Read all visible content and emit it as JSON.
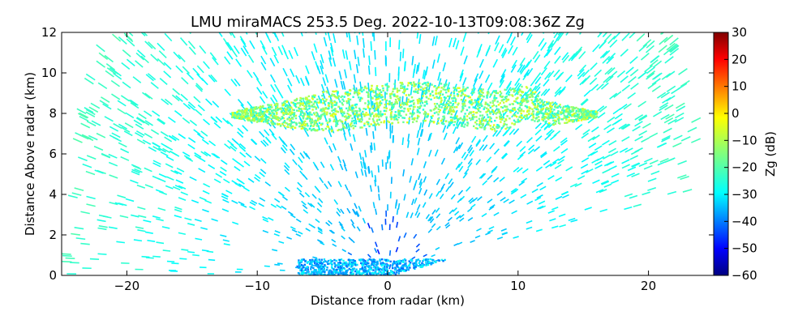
{
  "chart_data": {
    "type": "heatmap",
    "title": "LMU miraMACS 253.5 Deg. 2022-10-13T09:08:36Z  Zg",
    "xlabel": "Distance from radar (km)",
    "ylabel": "Distance Above radar  (km)",
    "xlim": [
      -25,
      25
    ],
    "ylim": [
      0,
      12
    ],
    "x_ticks": [
      -20,
      -10,
      0,
      10,
      20
    ],
    "y_ticks": [
      0,
      2,
      4,
      6,
      8,
      10,
      12
    ],
    "grid": false,
    "colorbar": {
      "label": "Zg (dB)",
      "range": [
        -60,
        30
      ],
      "ticks": [
        30,
        20,
        10,
        0,
        -10,
        -20,
        -30,
        -40,
        -50,
        -60
      ],
      "colormap": "jet"
    },
    "features": [
      {
        "type": "cloud_layer",
        "x_range": [
          -12,
          16
        ],
        "y_range": [
          7.4,
          9.4
        ],
        "z_dB": [
          -25,
          -5
        ]
      },
      {
        "type": "near_surface_echo",
        "x_range": [
          -7,
          5
        ],
        "y_range": [
          0,
          1
        ],
        "z_dB": [
          -40,
          -25
        ]
      },
      {
        "type": "background_noise",
        "z_dB": [
          -30,
          -22
        ]
      }
    ]
  }
}
